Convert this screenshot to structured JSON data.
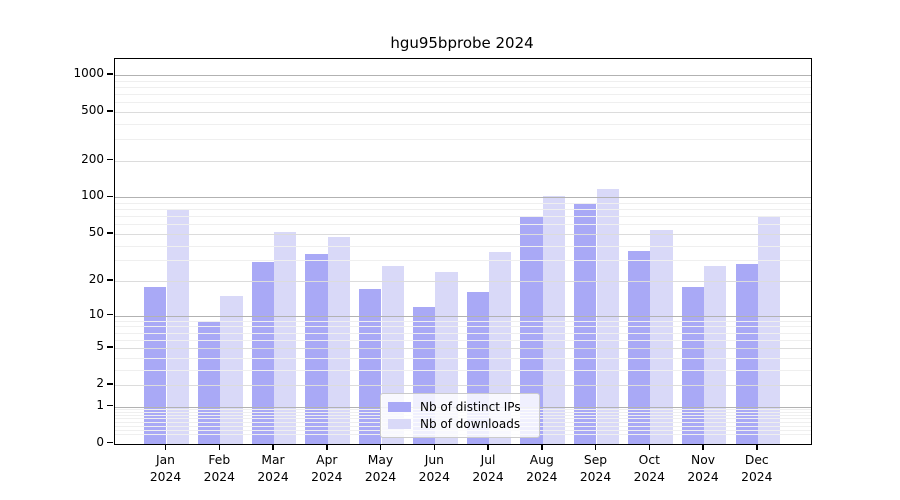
{
  "chart_data": {
    "type": "bar",
    "title": "hgu95bprobe 2024",
    "year": "2024",
    "categories": [
      "Jan",
      "Feb",
      "Mar",
      "Apr",
      "May",
      "Jun",
      "Jul",
      "Aug",
      "Sep",
      "Oct",
      "Nov",
      "Dec"
    ],
    "series": [
      {
        "name": "Nb of distinct IPs",
        "color": "#a9a9f6",
        "values": [
          18,
          9,
          29,
          34,
          17,
          12,
          16,
          70,
          90,
          36,
          18,
          28
        ]
      },
      {
        "name": "Nb of downloads",
        "color": "#d9d9f8",
        "values": [
          80,
          15,
          52,
          47,
          27,
          24,
          35,
          102,
          117,
          54,
          27,
          70
        ]
      }
    ],
    "xlabel": "",
    "ylabel": "",
    "y_scale": "log10(1+y)",
    "ylim": [
      0,
      1350
    ],
    "y_ticks": [
      0,
      1,
      2,
      5,
      10,
      20,
      50,
      100,
      200,
      500,
      1000
    ],
    "y_gridlines_major": [
      1,
      10,
      100,
      1000
    ],
    "y_gridlines_mid": [
      2,
      5,
      20,
      50,
      200,
      500
    ],
    "y_gridlines_minor": [
      0.2,
      0.3,
      0.4,
      0.5,
      0.6,
      0.7,
      0.8,
      0.9,
      3,
      4,
      6,
      7,
      8,
      9,
      30,
      40,
      60,
      70,
      80,
      90,
      300,
      400,
      600,
      700,
      800,
      900
    ],
    "grid": "horizontal gridlines drawn over bars",
    "legend_position": "inside bottom-center",
    "colors": {
      "frame": "#000000",
      "background": "#ffffff"
    }
  },
  "legend": {
    "items": [
      {
        "label": "Nb of distinct IPs"
      },
      {
        "label": "Nb of downloads"
      }
    ]
  }
}
